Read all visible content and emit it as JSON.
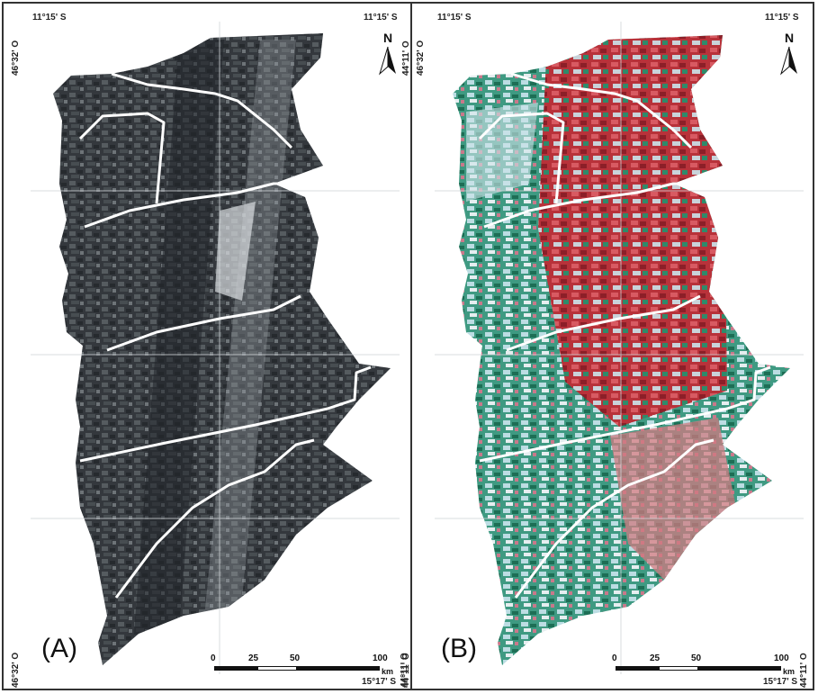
{
  "panels": [
    {
      "label": "(A)",
      "coords": {
        "top_left_lat": "11°15' S",
        "top_right_lat": "11°15' S",
        "left_top_lon": "46°32' O",
        "left_bottom_lon": "46°32' O",
        "right_bottom_lon": "44°11' O"
      },
      "style": "grayscale",
      "colors": {
        "base": "#3a3f44",
        "light": "#8c9196",
        "dark": "#1e2226"
      }
    },
    {
      "label": "(B)",
      "coords": {
        "top_left_lat": "11°15' S",
        "top_right_lat": "11°15' S",
        "left_top_lon": "46°32' O",
        "right_top_lon": "44°11' O",
        "right_bottom_lon": "44°11' O",
        "bottom_lat": "15°17' S"
      },
      "style": "false-color",
      "colors": {
        "base": "#b8323a",
        "green": "#2f8a6a",
        "light": "#b9d6dd",
        "pink": "#d98a96"
      }
    }
  ],
  "bottom_lat_a": "15°17' S",
  "north_arrow": {
    "label": "N",
    "icon": "north-arrow-icon"
  },
  "scale_bar": {
    "ticks": [
      "0",
      "25",
      "50",
      "100"
    ],
    "unit": "km"
  }
}
